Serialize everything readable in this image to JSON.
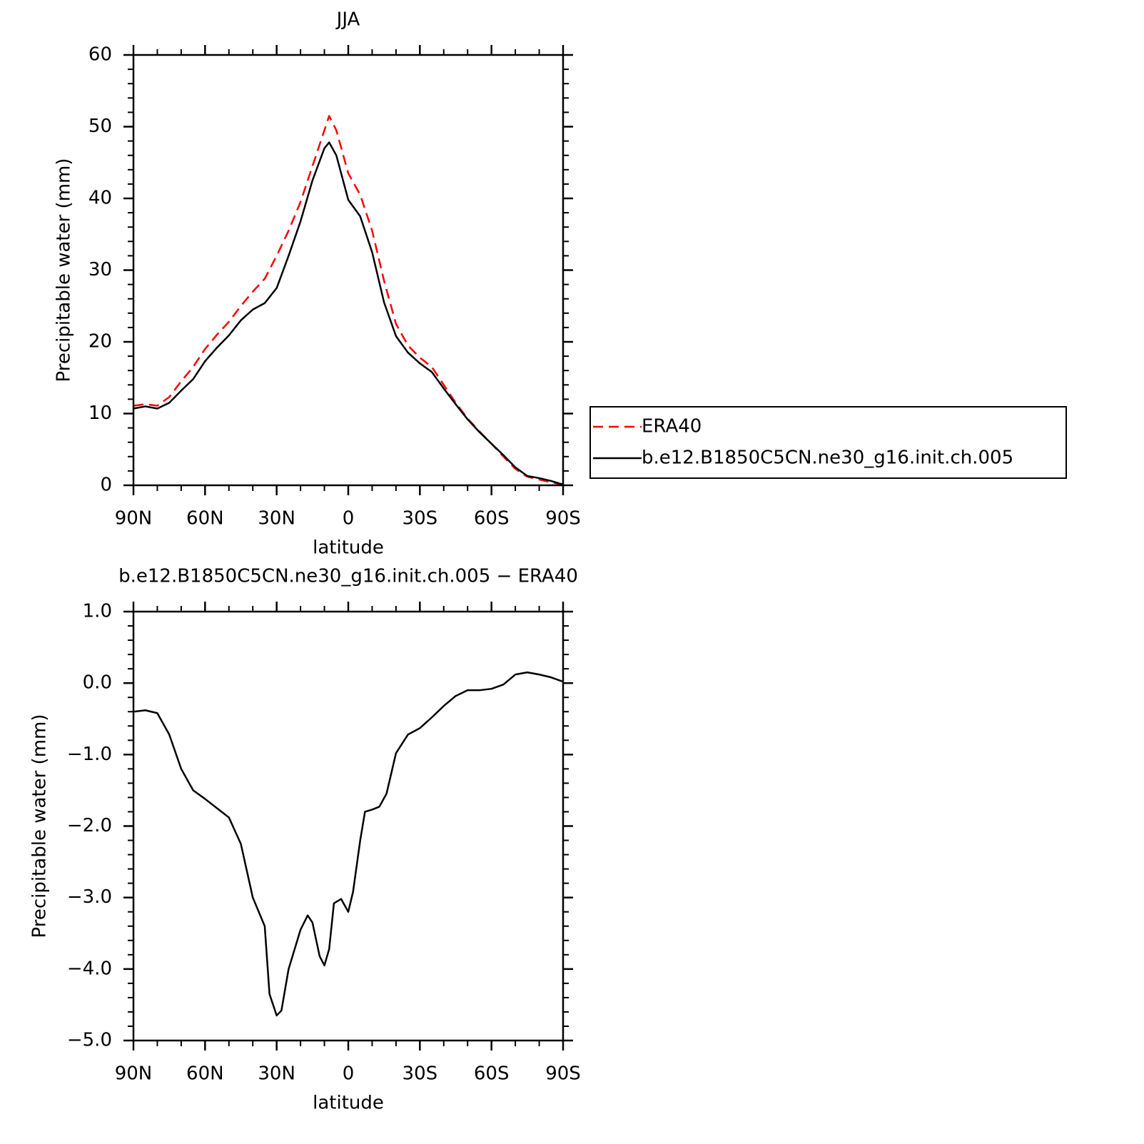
{
  "chart_data": [
    {
      "type": "line",
      "title": "JJA",
      "xlabel": "latitude",
      "ylabel": "Precipitable water (mm)",
      "x": [
        90,
        85,
        80,
        75,
        70,
        65,
        60,
        55,
        50,
        45,
        40,
        35,
        30,
        25,
        20,
        15,
        10,
        8,
        5,
        0,
        -5,
        -10,
        -15,
        -20,
        -25,
        -30,
        -35,
        -40,
        -45,
        -50,
        -55,
        -60,
        -65,
        -70,
        -75,
        -80,
        -85,
        -90
      ],
      "series": [
        {
          "name": "ERA40",
          "color": "#ff0000",
          "dash": "dashed",
          "values": [
            11.1,
            11.3,
            11.1,
            12.3,
            14.5,
            16.5,
            19.0,
            21.0,
            22.8,
            25.0,
            27.0,
            28.8,
            32.0,
            35.5,
            39.5,
            44.5,
            49.5,
            51.5,
            49.5,
            43.5,
            40.5,
            35.5,
            28.5,
            22.5,
            19.5,
            17.8,
            16.5,
            14.0,
            11.5,
            9.3,
            7.5,
            5.8,
            4.0,
            2.3,
            1.2,
            0.8,
            0.4,
            0.1
          ]
        },
        {
          "name": "b.e12.B1850C5CN.ne30_g16.init.ch.005",
          "color": "#000000",
          "dash": "solid",
          "values": [
            10.7,
            11.0,
            10.7,
            11.5,
            13.2,
            14.8,
            17.3,
            19.2,
            20.9,
            23.0,
            24.5,
            25.4,
            27.5,
            32.0,
            36.8,
            42.5,
            47.0,
            47.8,
            46.0,
            39.8,
            37.5,
            32.5,
            25.5,
            20.8,
            18.5,
            17.0,
            15.8,
            13.5,
            11.3,
            9.2,
            7.4,
            5.8,
            4.2,
            2.5,
            1.3,
            1.0,
            0.6,
            0.1
          ]
        }
      ],
      "xlim": [
        90,
        -90
      ],
      "xticks": [
        {
          "value": 90,
          "label": "90N"
        },
        {
          "value": 60,
          "label": "60N"
        },
        {
          "value": 30,
          "label": "30N"
        },
        0,
        {
          "value": -30,
          "label": "30S"
        },
        {
          "value": -60,
          "label": "60S"
        },
        {
          "value": -90,
          "label": "90S"
        }
      ],
      "ylim": [
        0,
        60
      ],
      "yticks": [
        0,
        10,
        20,
        30,
        40,
        50,
        60
      ],
      "legend": "right"
    },
    {
      "type": "line",
      "title": "b.e12.B1850C5CN.ne30_g16.init.ch.005 − ERA40",
      "xlabel": "latitude",
      "ylabel": "Precipitable water (mm)",
      "x": [
        90,
        85,
        80,
        75,
        70,
        65,
        60,
        55,
        50,
        45,
        40,
        35,
        33,
        30,
        28,
        25,
        20,
        17,
        15,
        12,
        10,
        8,
        6,
        3,
        0,
        -2,
        -5,
        -7,
        -10,
        -13,
        -16,
        -20,
        -25,
        -30,
        -35,
        -40,
        -45,
        -50,
        -55,
        -60,
        -65,
        -70,
        -75,
        -80,
        -85,
        -90
      ],
      "series": [
        {
          "color": "#000000",
          "dash": "solid",
          "values": [
            -0.4,
            -0.38,
            -0.42,
            -0.72,
            -1.2,
            -1.5,
            -1.62,
            -1.75,
            -1.88,
            -2.25,
            -3.0,
            -3.4,
            -4.35,
            -4.65,
            -4.58,
            -4.0,
            -3.45,
            -3.25,
            -3.35,
            -3.82,
            -3.95,
            -3.72,
            -3.08,
            -3.02,
            -3.2,
            -2.92,
            -2.2,
            -1.8,
            -1.77,
            -1.73,
            -1.55,
            -0.98,
            -0.72,
            -0.63,
            -0.48,
            -0.32,
            -0.18,
            -0.1,
            -0.1,
            -0.08,
            -0.02,
            0.12,
            0.15,
            0.12,
            0.08,
            0.02
          ]
        }
      ],
      "xlim": [
        90,
        -90
      ],
      "xticks": [
        {
          "value": 90,
          "label": "90N"
        },
        {
          "value": 60,
          "label": "60N"
        },
        {
          "value": 30,
          "label": "30N"
        },
        0,
        {
          "value": -30,
          "label": "30S"
        },
        {
          "value": -60,
          "label": "60S"
        },
        {
          "value": -90,
          "label": "90S"
        }
      ],
      "ylim": [
        -5,
        1
      ],
      "yticks": [
        {
          "value": -5,
          "label": "−5.0"
        },
        {
          "value": -4,
          "label": "−4.0"
        },
        {
          "value": -3,
          "label": "−3.0"
        },
        {
          "value": -2,
          "label": "−2.0"
        },
        {
          "value": -1,
          "label": "−1.0"
        },
        {
          "value": 0,
          "label": "0.0"
        },
        {
          "value": 1,
          "label": "1.0"
        }
      ]
    }
  ]
}
